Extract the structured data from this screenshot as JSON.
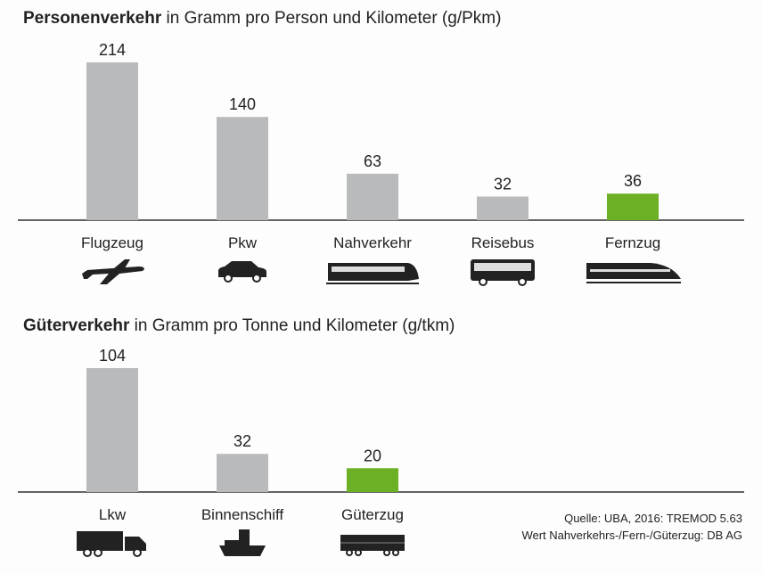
{
  "colors": {
    "bar": "#b8babb",
    "highlight": "#6cb125",
    "axis": "#333333"
  },
  "chart_data": [
    {
      "type": "bar",
      "title_bold": "Personenverkehr",
      "title": "in Gramm pro Person und Kilometer (g/Pkm)",
      "categories": [
        "Flugzeug",
        "Pkw",
        "Nahverkehr",
        "Reisebus",
        "Fernzug"
      ],
      "icons": [
        "airplane-icon",
        "car-icon",
        "regional-train-icon",
        "bus-icon",
        "high-speed-train-icon"
      ],
      "values": [
        214,
        140,
        63,
        32,
        36
      ],
      "highlight": [
        "Fernzug"
      ],
      "ylim": [
        0,
        214
      ],
      "grid": false
    },
    {
      "type": "bar",
      "title_bold": "Güterverkehr",
      "title": "in Gramm pro Tonne und Kilometer (g/tkm)",
      "categories": [
        "Lkw",
        "Binnenschiff",
        "Güterzug"
      ],
      "icons": [
        "truck-icon",
        "ship-icon",
        "freight-train-icon"
      ],
      "values": [
        104,
        32,
        20
      ],
      "highlight": [
        "Güterzug"
      ],
      "ylim": [
        0,
        104
      ],
      "grid": false
    }
  ],
  "footnote": {
    "source": "Quelle: UBA, 2016: TREMOD 5.63",
    "note": "Wert Nahverkehrs-/Fern-/Güterzug: DB AG"
  }
}
